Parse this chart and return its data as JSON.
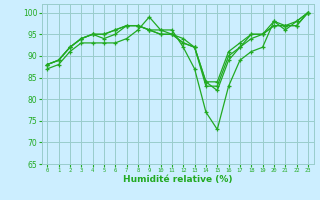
{
  "xlabel": "Humidité relative (%)",
  "bg_color": "#cceeff",
  "grid_color": "#99cccc",
  "line_color": "#22aa22",
  "xlim": [
    -0.5,
    23.5
  ],
  "ylim": [
    65,
    102
  ],
  "yticks": [
    65,
    70,
    75,
    80,
    85,
    90,
    95,
    100
  ],
  "xticks": [
    0,
    1,
    2,
    3,
    4,
    5,
    6,
    7,
    8,
    9,
    10,
    11,
    12,
    13,
    14,
    15,
    16,
    17,
    18,
    19,
    20,
    21,
    22,
    23
  ],
  "series": [
    [
      87,
      88,
      91,
      93,
      93,
      93,
      93,
      94,
      96,
      99,
      96,
      96,
      92,
      87,
      77,
      73,
      83,
      89,
      91,
      92,
      98,
      97,
      97,
      100
    ],
    [
      88,
      89,
      92,
      94,
      95,
      94,
      95,
      97,
      97,
      96,
      96,
      95,
      94,
      92,
      84,
      82,
      89,
      92,
      94,
      95,
      98,
      96,
      98,
      100
    ],
    [
      88,
      89,
      92,
      94,
      95,
      95,
      96,
      97,
      97,
      96,
      95,
      95,
      93,
      92,
      83,
      83,
      90,
      92,
      95,
      95,
      97,
      97,
      98,
      100
    ],
    [
      88,
      89,
      92,
      94,
      95,
      95,
      96,
      97,
      97,
      96,
      95,
      95,
      93,
      92,
      84,
      84,
      91,
      93,
      95,
      95,
      97,
      97,
      97,
      100
    ]
  ]
}
